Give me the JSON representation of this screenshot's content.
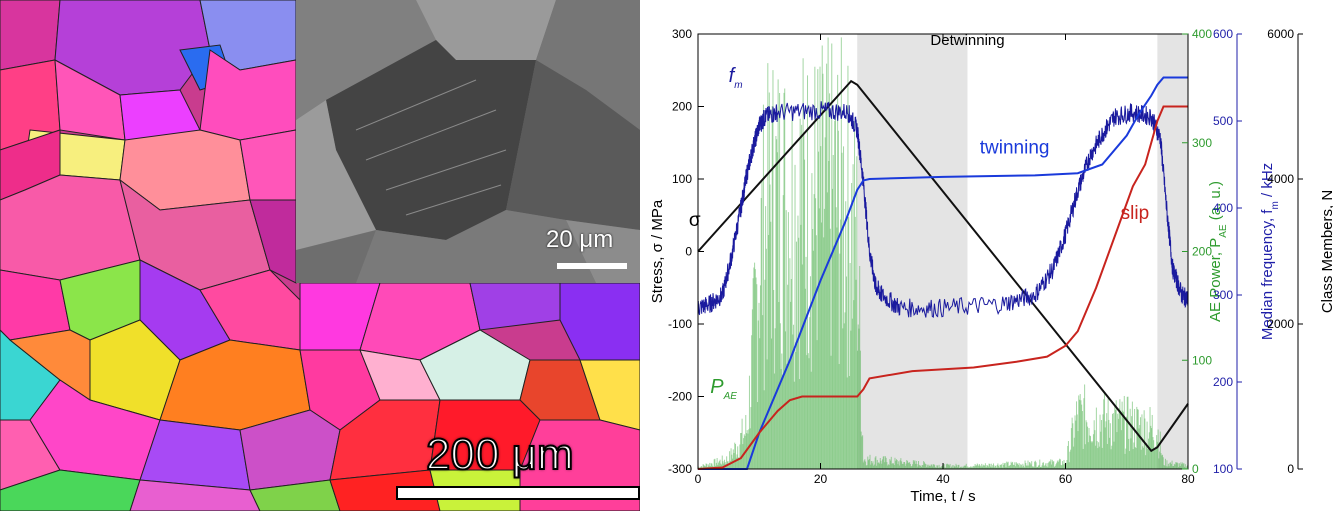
{
  "micrograph": {
    "inset_scale_label": "20 μm",
    "main_scale_label": "200 μm"
  },
  "chart_data": {
    "type": "line",
    "xlabel": "Time, t / s",
    "xlim": [
      0,
      80
    ],
    "x_ticks": [
      "0",
      "20",
      "40",
      "60",
      "80"
    ],
    "shaded_regions": [
      [
        26,
        44
      ],
      [
        75,
        80
      ]
    ],
    "shaded_label": "Detwinning",
    "axes": [
      {
        "id": "stress",
        "label": "Stress, σ / MPa",
        "lim": [
          -300,
          300
        ],
        "ticks": [
          "-300",
          "-200",
          "-100",
          "0",
          "100",
          "200",
          "300"
        ],
        "color": "#000000"
      },
      {
        "id": "ae",
        "label": "AE Power, P_AE (a. u.)",
        "lim": [
          0,
          400
        ],
        "ticks": [
          "0",
          "100",
          "200",
          "300",
          "400"
        ],
        "color": "#2e9b2e"
      },
      {
        "id": "freq",
        "label": "Median frequency, f_m / kHz",
        "lim": [
          100,
          600
        ],
        "ticks": [
          "100",
          "200",
          "300",
          "400",
          "500",
          "600"
        ],
        "color": "#1f1fa8"
      },
      {
        "id": "class",
        "label": "Class Members, N",
        "lim": [
          0,
          6000
        ],
        "ticks": [
          "0",
          "2000",
          "4000",
          "6000"
        ],
        "color": "#000000"
      }
    ],
    "series": [
      {
        "name": "σ",
        "axis": "stress",
        "color": "#111111",
        "x": [
          0,
          25,
          26,
          74,
          75,
          80
        ],
        "y": [
          0,
          235,
          230,
          -275,
          -270,
          -210
        ]
      },
      {
        "name": "f_m",
        "axis": "freq",
        "color": "#1a1a9e",
        "x": [
          0,
          2,
          4,
          5.5,
          7,
          8,
          9,
          10,
          11,
          13,
          20,
          24.5,
          26,
          27,
          28,
          29,
          30,
          33,
          40,
          50,
          55,
          58,
          60,
          62,
          64,
          66,
          68,
          71,
          74,
          75.5,
          76.5,
          77.5,
          79,
          80
        ],
        "y": [
          285,
          290,
          300,
          345,
          400,
          440,
          470,
          495,
          505,
          510,
          512,
          510,
          490,
          430,
          350,
          310,
          300,
          285,
          285,
          290,
          300,
          330,
          370,
          420,
          460,
          485,
          505,
          510,
          505,
          480,
          400,
          330,
          300,
          295
        ]
      },
      {
        "name": "twinning",
        "axis": "class",
        "color": "#1a3adb",
        "x": [
          0,
          8,
          10,
          15,
          20,
          24,
          26,
          27,
          28,
          40,
          55,
          62,
          66,
          70,
          72,
          74,
          75,
          76,
          80
        ],
        "y": [
          0,
          0,
          500,
          1500,
          2600,
          3400,
          3850,
          3980,
          4000,
          4030,
          4050,
          4080,
          4200,
          4600,
          4900,
          5150,
          5300,
          5400,
          5400
        ]
      },
      {
        "name": "slip",
        "axis": "class",
        "color": "#c8241e",
        "x": [
          0,
          4,
          7,
          10,
          13,
          15,
          17,
          20,
          26,
          27,
          28,
          35,
          45,
          52,
          57,
          60,
          62,
          65,
          68,
          71,
          73,
          74,
          75,
          76,
          80
        ],
        "y": [
          0,
          20,
          150,
          500,
          800,
          950,
          1000,
          1000,
          1000,
          1100,
          1250,
          1350,
          1400,
          1480,
          1550,
          1700,
          1900,
          2500,
          3200,
          3900,
          4200,
          4500,
          4800,
          5000,
          5000
        ]
      }
    ],
    "ae_power_envelope": {
      "x": [
        0,
        5,
        8,
        9,
        10,
        12,
        16,
        20,
        24,
        26,
        27,
        40,
        44,
        60,
        62,
        75,
        76,
        80
      ],
      "y": [
        3,
        15,
        60,
        180,
        320,
        400,
        400,
        400,
        400,
        330,
        15,
        5,
        5,
        10,
        80,
        60,
        10,
        5
      ]
    },
    "annotations": [
      {
        "text": "Detwinning",
        "x": 44,
        "y": 285,
        "axis": "stress"
      },
      {
        "text": "σ",
        "x": -1.5,
        "y": 35,
        "axis": "stress"
      },
      {
        "text": "f",
        "sub": "m",
        "x": 5,
        "y": 545,
        "axis": "freq"
      },
      {
        "text": "twinning",
        "x": 46,
        "y": 4350,
        "axis": "class"
      },
      {
        "text": "slip",
        "x": 69,
        "y": 3450,
        "axis": "class"
      },
      {
        "text": "P",
        "sub": "AE",
        "x": 2,
        "y": 70,
        "axis": "ae"
      }
    ]
  }
}
